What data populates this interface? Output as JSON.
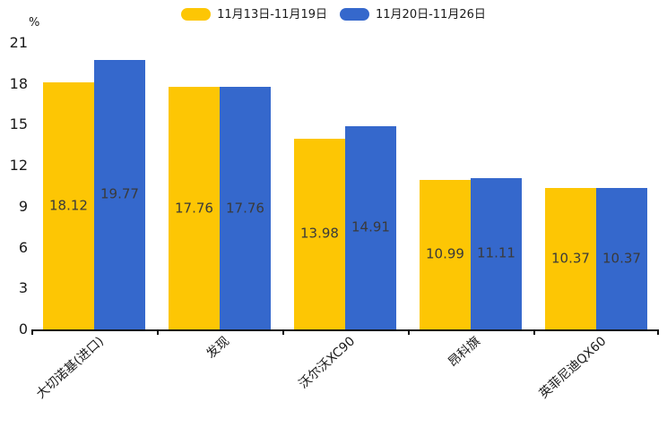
{
  "chart_data": {
    "type": "bar",
    "title": "",
    "y_unit": "%",
    "categories": [
      "大切诺基(进口)",
      "发现",
      "沃尔沃XC90",
      "昂科旗",
      "英菲尼迪QX60"
    ],
    "series": [
      {
        "name": "11月13日-11月19日",
        "color": "#FDC604",
        "values": [
          18.12,
          17.76,
          13.98,
          10.99,
          10.37
        ]
      },
      {
        "name": "11月20日-11月26日",
        "color": "#3568CC",
        "values": [
          19.77,
          17.76,
          14.91,
          11.11,
          10.37
        ]
      }
    ],
    "ylim": [
      0,
      21
    ],
    "yticks": [
      0,
      3,
      6,
      9,
      12,
      15,
      18,
      21
    ],
    "grid": false,
    "legend_position": "top-center",
    "value_label_position": "inside-center",
    "value_label_decimals": 2,
    "axis_color": "#111111",
    "label_text_color": "#3a3a3a"
  }
}
